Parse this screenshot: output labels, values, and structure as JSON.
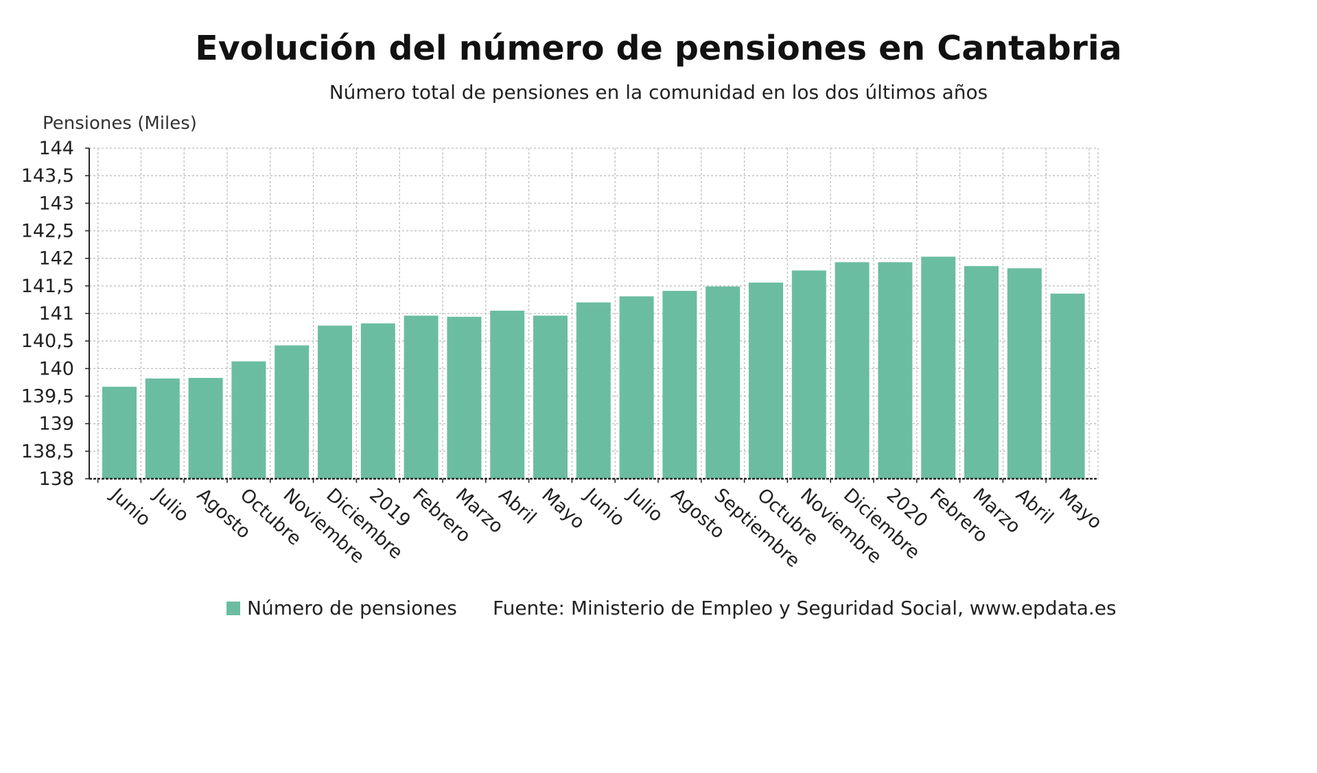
{
  "title": "Evolución del número de pensiones en Cantabria",
  "subtitle": "Número total de pensiones en la comunidad en los dos últimos años",
  "colors": {
    "bar": "#6bbda1",
    "grid": "#bdbdbd",
    "axis": "#222222"
  },
  "legend": {
    "label": "Número de pensiones"
  },
  "source": "Fuente: Ministerio de Empleo y Seguridad Social, www.epdata.es",
  "chart_data": {
    "type": "bar",
    "title": "Evolución del número de pensiones en Cantabria",
    "subtitle": "Número total de pensiones en la comunidad en los dos últimos años",
    "ylabel": "Pensiones (Miles)",
    "xlabel": "",
    "ylim": [
      138,
      144
    ],
    "yticks": [
      "138",
      "138,5",
      "139",
      "139,5",
      "140",
      "140,5",
      "141",
      "141,5",
      "142",
      "142,5",
      "143",
      "143,5",
      "144"
    ],
    "grid": true,
    "legend_position": "bottom",
    "categories": [
      "Junio",
      "Julio",
      "Agosto",
      "Octubre",
      "Noviembre",
      "Diciembre",
      "2019",
      "Febrero",
      "Marzo",
      "Abril",
      "Mayo",
      "Junio",
      "Julio",
      "Agosto",
      "Septiembre",
      "Octubre",
      "Noviembre",
      "Diciembre",
      "2020",
      "Febrero",
      "Marzo",
      "Abril",
      "Mayo"
    ],
    "series": [
      {
        "name": "Número de pensiones",
        "values": [
          139.67,
          139.82,
          139.83,
          140.13,
          140.42,
          140.78,
          140.82,
          140.96,
          140.94,
          141.05,
          140.96,
          141.2,
          141.31,
          141.41,
          141.49,
          141.56,
          141.78,
          141.93,
          141.93,
          142.03,
          141.86,
          141.82,
          141.36
        ]
      }
    ]
  }
}
